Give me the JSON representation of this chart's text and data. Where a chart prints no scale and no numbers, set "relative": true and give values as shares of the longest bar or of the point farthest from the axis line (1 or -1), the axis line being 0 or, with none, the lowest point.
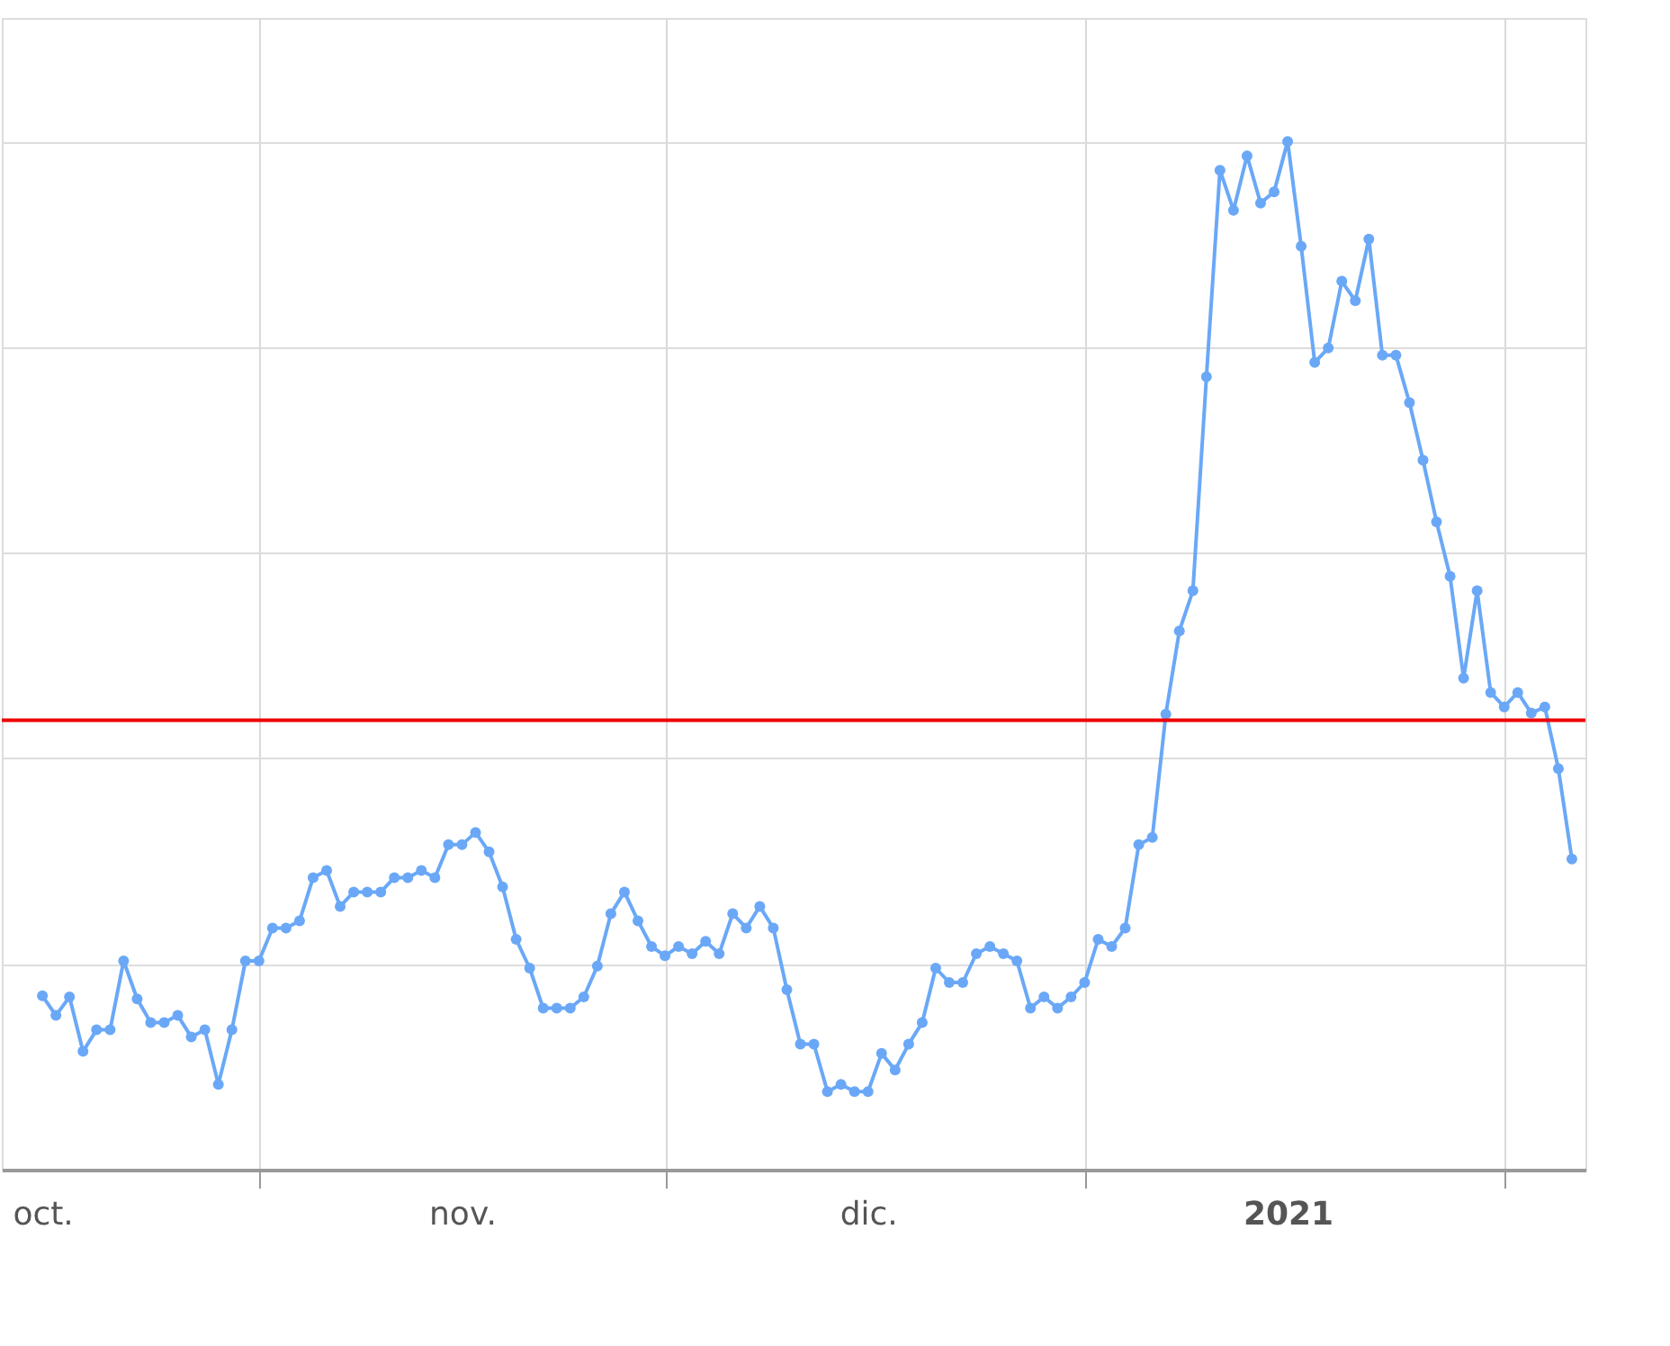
{
  "chart_data": {
    "type": "line",
    "relative": true,
    "grid": true,
    "marker": "circle",
    "line_style": "solid",
    "legend": false,
    "x": [
      "2020-10-16",
      "2020-10-17",
      "2020-10-18",
      "2020-10-19",
      "2020-10-20",
      "2020-10-21",
      "2020-10-22",
      "2020-10-23",
      "2020-10-24",
      "2020-10-25",
      "2020-10-26",
      "2020-10-27",
      "2020-10-28",
      "2020-10-29",
      "2020-10-30",
      "2020-10-31",
      "2020-11-01",
      "2020-11-02",
      "2020-11-03",
      "2020-11-04",
      "2020-11-05",
      "2020-11-06",
      "2020-11-07",
      "2020-11-08",
      "2020-11-09",
      "2020-11-10",
      "2020-11-11",
      "2020-11-12",
      "2020-11-13",
      "2020-11-14",
      "2020-11-15",
      "2020-11-16",
      "2020-11-17",
      "2020-11-18",
      "2020-11-19",
      "2020-11-20",
      "2020-11-21",
      "2020-11-22",
      "2020-11-23",
      "2020-11-24",
      "2020-11-25",
      "2020-11-26",
      "2020-11-27",
      "2020-11-28",
      "2020-11-29",
      "2020-11-30",
      "2020-12-01",
      "2020-12-02",
      "2020-12-03",
      "2020-12-04",
      "2020-12-05",
      "2020-12-06",
      "2020-12-07",
      "2020-12-08",
      "2020-12-09",
      "2020-12-10",
      "2020-12-11",
      "2020-12-12",
      "2020-12-13",
      "2020-12-14",
      "2020-12-15",
      "2020-12-16",
      "2020-12-17",
      "2020-12-18",
      "2020-12-19",
      "2020-12-20",
      "2020-12-21",
      "2020-12-22",
      "2020-12-23",
      "2020-12-24",
      "2020-12-25",
      "2020-12-26",
      "2020-12-27",
      "2020-12-28",
      "2020-12-29",
      "2020-12-30",
      "2020-12-31",
      "2021-01-01",
      "2021-01-02",
      "2021-01-03",
      "2021-01-04",
      "2021-01-05",
      "2021-01-06",
      "2021-01-07",
      "2021-01-08",
      "2021-01-09",
      "2021-01-10",
      "2021-01-11",
      "2021-01-12",
      "2021-01-13",
      "2021-01-14",
      "2021-01-15",
      "2021-01-16",
      "2021-01-17",
      "2021-01-18",
      "2021-01-19",
      "2021-01-20",
      "2021-01-21",
      "2021-01-22",
      "2021-01-23",
      "2021-01-24",
      "2021-01-25",
      "2021-01-26",
      "2021-01-27",
      "2021-01-28",
      "2021-01-29",
      "2021-01-30",
      "2021-01-31",
      "2021-02-01",
      "2021-02-02",
      "2021-02-03",
      "2021-02-04",
      "2021-02-05",
      "2021-02-06"
    ],
    "series": [
      {
        "color": "#6aa8f7",
        "values": [
          0.169,
          0.15,
          0.168,
          0.115,
          0.136,
          0.136,
          0.203,
          0.166,
          0.143,
          0.143,
          0.15,
          0.129,
          0.136,
          0.083,
          0.136,
          0.203,
          0.203,
          0.235,
          0.235,
          0.242,
          0.284,
          0.291,
          0.256,
          0.27,
          0.27,
          0.27,
          0.284,
          0.284,
          0.291,
          0.284,
          0.316,
          0.316,
          0.328,
          0.309,
          0.275,
          0.224,
          0.196,
          0.157,
          0.157,
          0.157,
          0.168,
          0.198,
          0.249,
          0.27,
          0.242,
          0.217,
          0.208,
          0.217,
          0.21,
          0.222,
          0.21,
          0.249,
          0.235,
          0.256,
          0.235,
          0.175,
          0.122,
          0.122,
          0.076,
          0.083,
          0.076,
          0.076,
          0.113,
          0.097,
          0.122,
          0.143,
          0.196,
          0.182,
          0.182,
          0.21,
          0.217,
          0.21,
          0.203,
          0.157,
          0.168,
          0.157,
          0.168,
          0.182,
          0.224,
          0.217,
          0.235,
          0.316,
          0.323,
          0.443,
          0.524,
          0.563,
          0.771,
          0.972,
          0.933,
          0.986,
          0.94,
          0.951,
          1,
          0.898,
          0.785,
          0.799,
          0.864,
          0.845,
          0.905,
          0.792,
          0.792,
          0.746,
          0.69,
          0.63,
          0.577,
          0.478,
          0.563,
          0.464,
          0.45,
          0.464,
          0.444,
          0.45,
          0.39,
          0.302
        ]
      }
    ],
    "xlim": [
      "2020-10-13",
      "2021-02-07"
    ],
    "xticks": [
      {
        "value": "2020-10-16",
        "label": "oct."
      },
      {
        "value": "2020-11-01",
        "label": null
      },
      {
        "value": "2020-11-16",
        "label": "nov."
      },
      {
        "value": "2020-12-01",
        "label": null
      },
      {
        "value": "2020-12-16",
        "label": "dic."
      },
      {
        "value": "2021-01-01",
        "label": null
      },
      {
        "value": "2021-01-16",
        "label": "2021"
      },
      {
        "value": "2021-02-01",
        "label": null
      }
    ],
    "ref_lines": [
      {
        "axis": "y",
        "value": 0.437,
        "color": "#ee0000",
        "line_style": "solid"
      }
    ]
  }
}
